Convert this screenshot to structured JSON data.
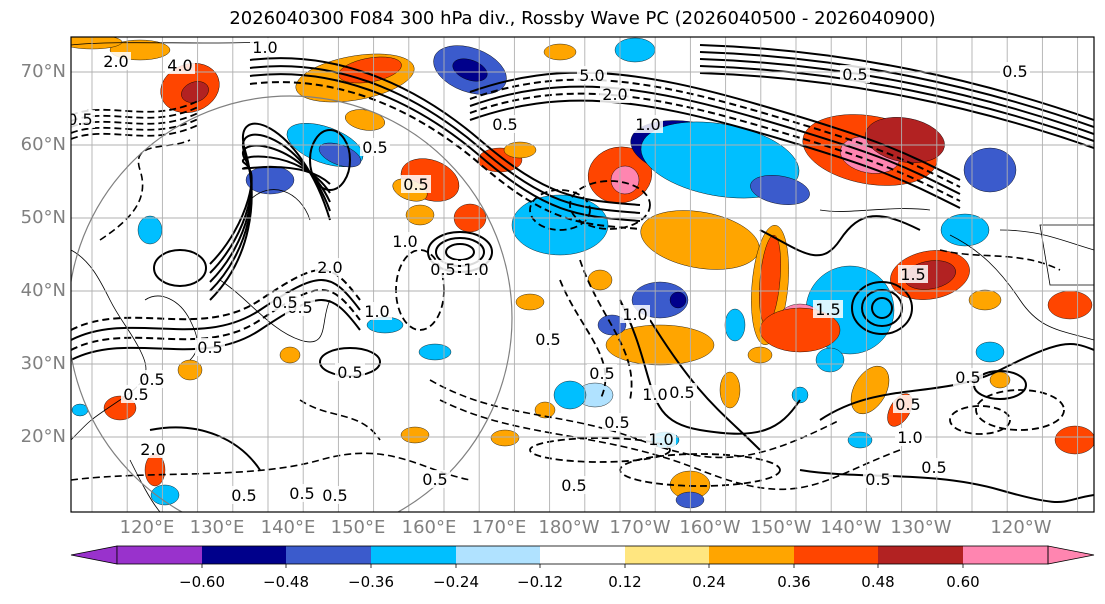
{
  "figure": {
    "title": "2026040300 F084 300 hPa div., Rossby Wave PC (2026040500 - 2026040900)",
    "field": "300 hPa divergence",
    "overlay": "Rossby Wave PC"
  },
  "lat_labels": [
    "70°N",
    "60°N",
    "50°N",
    "40°N",
    "30°N",
    "20°N"
  ],
  "lon_labels": [
    "120°E",
    "130°E",
    "140°E",
    "150°E",
    "160°E",
    "170°E",
    "180°W",
    "170°W",
    "160°W",
    "150°W",
    "140°W",
    "130°W",
    "120°W"
  ],
  "colorbar": {
    "ticks": [
      "−0.60",
      "−0.48",
      "−0.36",
      "−0.24",
      "−0.12",
      "0.12",
      "0.24",
      "0.36",
      "0.48",
      "0.60"
    ],
    "colors": [
      "#9932cc",
      "#00008b",
      "#3b5bcc",
      "#00bfff",
      "#b0e2ff",
      "#ffffff",
      "#ffe680",
      "#ffa500",
      "#ff4500",
      "#b22222",
      "#ff85b0"
    ]
  },
  "contour_labels": [
    "2.0",
    "4.0",
    "1.0",
    "0.5",
    "5.0",
    "2.0",
    "0.5",
    "1.0",
    "0.5",
    "0.5",
    "1.0",
    "2.0",
    "0.5",
    "1.0",
    "0.5",
    "1.0",
    "1.5",
    "0.5",
    "0.5",
    "1.0",
    "0.5",
    "0.5",
    "0.5",
    "0.5",
    "0.5",
    "1.0",
    "0.5",
    "1.0",
    "0.5",
    "1.5",
    "0.5",
    "0.5",
    "1.0",
    "0.5",
    "0.5",
    "0.5",
    "0.5",
    "0.5",
    "0.5",
    "2.0",
    "0.5",
    "0.5",
    "0.5"
  ],
  "colors": {
    "map_border": "#000000",
    "grid": "#b0b0b0",
    "axis_label": "#808080",
    "contour": "#000000",
    "circle": "#808080"
  }
}
